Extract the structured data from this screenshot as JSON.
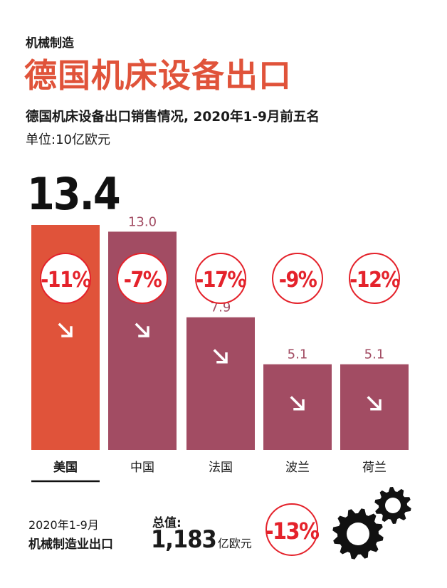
{
  "header": {
    "kicker": "机械制造",
    "title": "德国机床设备出口",
    "subtitle": "德国机床设备出口销售情况, 2020年1-9月前五名",
    "unit": "单位:10亿欧元"
  },
  "colors": {
    "accent": "#e0533a",
    "bar": "#a24c63",
    "change": "#e4222b"
  },
  "chart_data": {
    "type": "bar",
    "title": "德国机床设备出口销售情况, 2020年1-9月前五名",
    "ylabel": "单位:10亿欧元",
    "categories": [
      "美国",
      "中国",
      "法国",
      "波兰",
      "荷兰"
    ],
    "values": [
      13.4,
      13.0,
      7.9,
      5.1,
      5.1
    ],
    "value_labels": [
      "13.4",
      "13.0",
      "7.9",
      "5.1",
      "5.1"
    ],
    "changes": [
      "-11%",
      "-7%",
      "-17%",
      "-9%",
      "-12%"
    ],
    "highlight_index": 0,
    "trend_icon": "arrow-down-right-icon",
    "ylim": [
      0,
      14
    ],
    "grid": false,
    "legend": "none"
  },
  "summary": {
    "period": "2020年1-9月",
    "label": "机械制造业出口",
    "total_label": "总值:",
    "total_value": "1,183",
    "total_unit": "亿欧元",
    "change": "-13%",
    "icon": "gears-icon"
  }
}
